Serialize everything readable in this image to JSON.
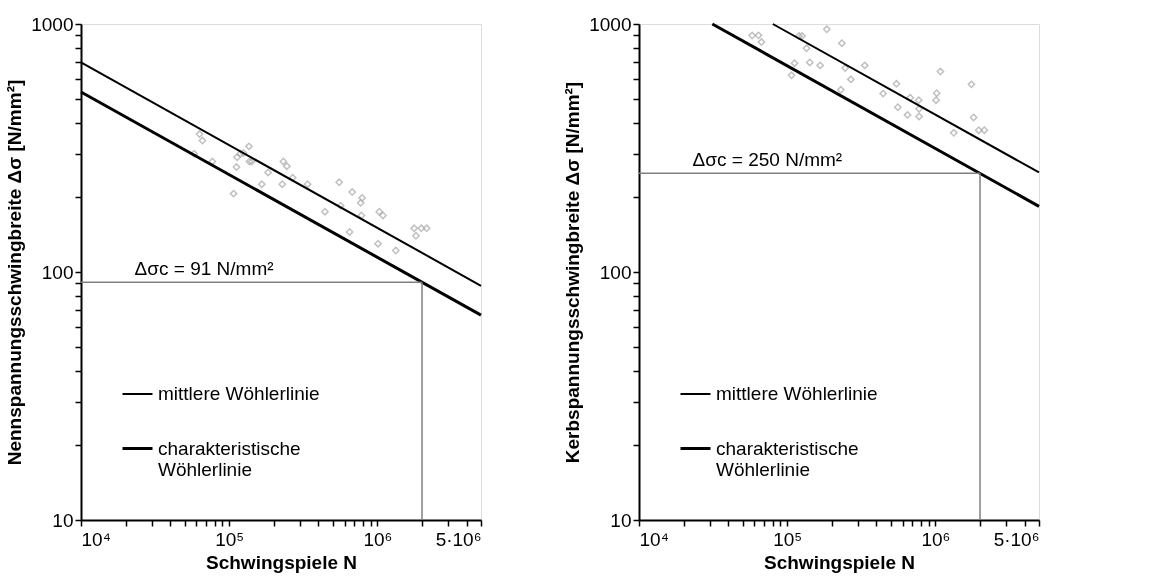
{
  "chart_data": [
    {
      "type": "line",
      "xlabel": "Schwingspiele N",
      "ylabel": "Nennspannungsschwingbreite Δσ [N/mm²]",
      "log": "xy",
      "grid": false,
      "legend": "bottom left",
      "xlim": [
        10000,
        5000000
      ],
      "ylim": [
        10,
        1000
      ],
      "xticks": [
        {
          "value": 10000,
          "label": "10⁴"
        },
        {
          "value": 20000,
          "label": null
        },
        {
          "value": 30000,
          "label": null
        },
        {
          "value": 40000,
          "label": null
        },
        {
          "value": 50000,
          "label": null
        },
        {
          "value": 60000,
          "label": null
        },
        {
          "value": 70000,
          "label": null
        },
        {
          "value": 80000,
          "label": null
        },
        {
          "value": 90000,
          "label": null
        },
        {
          "value": 100000,
          "label": "10⁵"
        },
        {
          "value": 200000,
          "label": null
        },
        {
          "value": 300000,
          "label": null
        },
        {
          "value": 400000,
          "label": null
        },
        {
          "value": 500000,
          "label": null
        },
        {
          "value": 600000,
          "label": null
        },
        {
          "value": 700000,
          "label": null
        },
        {
          "value": 800000,
          "label": null
        },
        {
          "value": 900000,
          "label": null
        },
        {
          "value": 1000000,
          "label": "10⁶"
        },
        {
          "value": 2000000,
          "label": null
        },
        {
          "value": 3000000,
          "label": null
        },
        {
          "value": 4000000,
          "label": null
        },
        {
          "value": 5000000,
          "label": "5·10⁶"
        }
      ],
      "yticks": [
        10,
        {
          "value": 20,
          "label": null
        },
        {
          "value": 30,
          "label": null
        },
        {
          "value": 40,
          "label": null
        },
        {
          "value": 50,
          "label": null
        },
        {
          "value": 60,
          "label": null
        },
        {
          "value": 70,
          "label": null
        },
        {
          "value": 80,
          "label": null
        },
        {
          "value": 90,
          "label": null
        },
        100,
        {
          "value": 200,
          "label": null
        },
        {
          "value": 300,
          "label": null
        },
        {
          "value": 400,
          "label": null
        },
        {
          "value": 500,
          "label": null
        },
        {
          "value": 600,
          "label": null
        },
        {
          "value": 700,
          "label": null
        },
        {
          "value": 800,
          "label": null
        },
        {
          "value": 900,
          "label": null
        },
        1000
      ],
      "annotations": [
        {
          "text": "Δσc = 91 N/mm²",
          "x": 23000,
          "y": 91
        }
      ],
      "series": [
        {
          "type": "scatter",
          "marker": "diamond",
          "color": "#a6a6a6",
          "x": [
            58000,
            63000,
            66000,
            77000,
            107000,
            112000,
            113000,
            119000,
            125000,
            136000,
            137000,
            142000,
            166000,
            183000,
            228000,
            232000,
            245000,
            268000,
            338000,
            443000,
            552000,
            565000,
            649000,
            676000,
            771000,
            789000,
            780000,
            1010000,
            1030000,
            1090000,
            1330000,
            1770000,
            1820000,
            1980000,
            2150000
          ],
          "values": [
            300,
            360,
            339,
            279,
            207,
            265,
            290,
            300,
            302,
            321,
            279,
            279,
            226,
            252,
            226,
            279,
            267,
            240,
            226,
            175,
            230,
            185,
            145,
            210,
            190,
            199,
            169,
            130,
            175,
            169,
            122,
            150,
            140,
            150,
            150
          ]
        },
        {
          "name": "mittlere Wöhlerlinie",
          "color": "#000000",
          "x": [
            10000,
            5000000
          ],
          "values": [
            700,
            88
          ]
        },
        {
          "name": "charakteristische Wöhlerlinie",
          "color": "#000000",
          "x": [
            10000,
            5000000
          ],
          "values": [
            532,
            67
          ]
        },
        {
          "color": "#808080",
          "x": [
            10000,
            2000000
          ],
          "values": [
            91,
            91
          ]
        },
        {
          "color": "#808080",
          "x": [
            2000000,
            2000000
          ],
          "values": [
            10,
            91
          ]
        }
      ]
    },
    {
      "type": "line",
      "xlabel": "Schwingspiele N",
      "ylabel": "Kerbspannungsschwingbreite Δσ [N/mm²]",
      "log": "xy",
      "grid": false,
      "legend": "bottom left",
      "xlim": [
        10000,
        5000000
      ],
      "ylim": [
        10,
        1000
      ],
      "xticks": [
        {
          "value": 10000,
          "label": "10⁴"
        },
        {
          "value": 20000,
          "label": null
        },
        {
          "value": 30000,
          "label": null
        },
        {
          "value": 40000,
          "label": null
        },
        {
          "value": 50000,
          "label": null
        },
        {
          "value": 60000,
          "label": null
        },
        {
          "value": 70000,
          "label": null
        },
        {
          "value": 80000,
          "label": null
        },
        {
          "value": 90000,
          "label": null
        },
        {
          "value": 100000,
          "label": "10⁵"
        },
        {
          "value": 200000,
          "label": null
        },
        {
          "value": 300000,
          "label": null
        },
        {
          "value": 400000,
          "label": null
        },
        {
          "value": 500000,
          "label": null
        },
        {
          "value": 600000,
          "label": null
        },
        {
          "value": 700000,
          "label": null
        },
        {
          "value": 800000,
          "label": null
        },
        {
          "value": 900000,
          "label": null
        },
        {
          "value": 1000000,
          "label": "10⁶"
        },
        {
          "value": 2000000,
          "label": null
        },
        {
          "value": 3000000,
          "label": null
        },
        {
          "value": 4000000,
          "label": null
        },
        {
          "value": 5000000,
          "label": "5·10⁶"
        }
      ],
      "yticks": [
        10,
        {
          "value": 20,
          "label": null
        },
        {
          "value": 30,
          "label": null
        },
        {
          "value": 40,
          "label": null
        },
        {
          "value": 50,
          "label": null
        },
        {
          "value": 60,
          "label": null
        },
        {
          "value": 70,
          "label": null
        },
        {
          "value": 80,
          "label": null
        },
        {
          "value": 90,
          "label": null
        },
        100,
        {
          "value": 200,
          "label": null
        },
        {
          "value": 300,
          "label": null
        },
        {
          "value": 400,
          "label": null
        },
        {
          "value": 500,
          "label": null
        },
        {
          "value": 600,
          "label": null
        },
        {
          "value": 700,
          "label": null
        },
        {
          "value": 800,
          "label": null
        },
        {
          "value": 900,
          "label": null
        },
        1000
      ],
      "annotations": [
        {
          "text": "Δσc = 250 N/mm²",
          "x": 23000,
          "y": 250
        }
      ],
      "series": [
        {
          "type": "scatter",
          "marker": "diamond",
          "color": "#a6a6a6",
          "x": [
            58000,
            64000,
            67000,
            107000,
            112000,
            120000,
            126000,
            135000,
            142000,
            167000,
            185000,
            230000,
            234000,
            246000,
            269000,
            334000,
            444000,
            546000,
            558000,
            649000,
            676000,
            771000,
            776000,
            776000,
            1010000,
            1020000,
            1080000,
            1330000,
            1750000,
            1810000,
            1960000,
            2140000
          ],
          "values": [
            898,
            900,
            846,
            621,
            695,
            895,
            895,
            798,
            700,
            681,
            952,
            543,
            837,
            664,
            598,
            681,
            524,
            574,
            462,
            430,
            504,
            493,
            455,
            424,
            493,
            526,
            643,
            364,
            571,
            420,
            373,
            373
          ]
        },
        {
          "name": "mittlere Wöhlerlinie",
          "color": "#000000",
          "x": [
            80000,
            5000000
          ],
          "values": [
            1000,
            252
          ]
        },
        {
          "name": "charakteristische Wöhlerlinie",
          "color": "#000000",
          "x": [
            31250,
            5000000
          ],
          "values": [
            1000,
            184
          ]
        },
        {
          "color": "#808080",
          "x": [
            10000,
            2000000
          ],
          "values": [
            250,
            250
          ]
        },
        {
          "color": "#808080",
          "x": [
            2000000,
            2000000
          ],
          "values": [
            10,
            250
          ]
        }
      ]
    }
  ]
}
